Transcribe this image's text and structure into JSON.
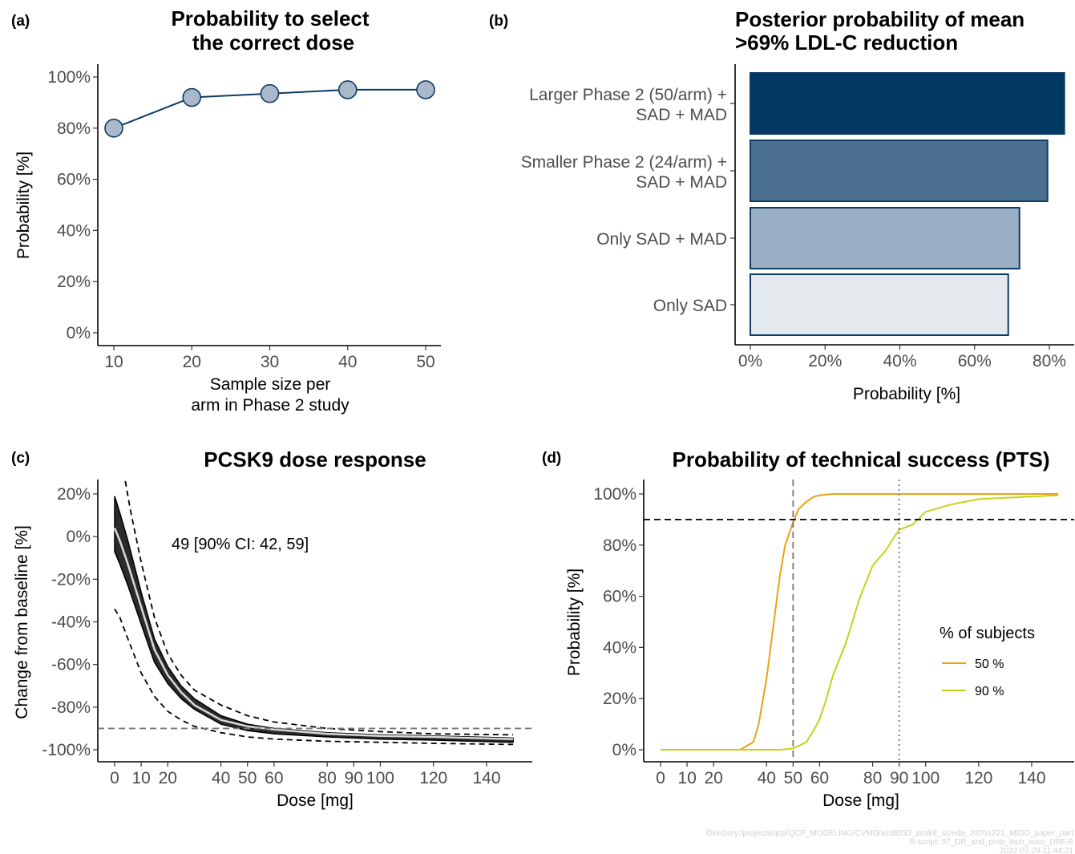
{
  "chart_data": [
    {
      "panel": "(a)",
      "type": "line",
      "title": [
        "Probability to select",
        "the correct dose"
      ],
      "xlabel": [
        "Sample size per",
        "arm in Phase 2 study"
      ],
      "ylabel": "Probability [%]",
      "xlim": [
        10,
        50
      ],
      "ylim": [
        0,
        100
      ],
      "xticks": [
        "10",
        "20",
        "30",
        "40",
        "50"
      ],
      "yticks": [
        "0%",
        "20%",
        "40%",
        "60%",
        "80%",
        "100%"
      ],
      "x": [
        10,
        20,
        30,
        40,
        50
      ],
      "y": [
        80,
        92,
        93.5,
        95,
        95
      ],
      "line_color": "#0b3b66",
      "marker_fill": "#a9b9cb"
    },
    {
      "panel": "(b)",
      "type": "bar",
      "orientation": "horizontal",
      "title": [
        "Posterior probability of mean",
        ">69% LDL-C reduction"
      ],
      "xlabel": "Probability [%]",
      "xlim": [
        0,
        80
      ],
      "xticks": [
        "0%",
        "20%",
        "40%",
        "60%",
        "80%"
      ],
      "categories": [
        [
          "Larger Phase 2 (50/arm) +",
          "SAD + MAD"
        ],
        [
          "Smaller Phase 2 (24/arm) +",
          "SAD + MAD"
        ],
        [
          "Only SAD + MAD"
        ],
        [
          "Only SAD"
        ]
      ],
      "values": [
        84,
        79.5,
        72,
        69
      ],
      "colors": [
        "#003763",
        "#4c7190",
        "#9aafc4",
        "#e4e9ee"
      ],
      "bar_border": "#0b3b66"
    },
    {
      "panel": "(c)",
      "type": "line",
      "title": "PCSK9 dose response",
      "xlabel": "Dose [mg]",
      "ylabel": "Change from baseline [%]",
      "xlim": [
        0,
        150
      ],
      "ylim": [
        -100,
        20
      ],
      "xticks": [
        "0",
        "10",
        "20",
        "40",
        "50",
        "60",
        "80",
        "90",
        "100",
        "120",
        "140"
      ],
      "xtick_values": [
        0,
        10,
        20,
        40,
        50,
        60,
        80,
        90,
        100,
        120,
        140
      ],
      "yticks": [
        "-100%",
        "-80%",
        "-60%",
        "-40%",
        "-20%",
        "0%",
        "20%"
      ],
      "annotation": "49 [90% CI: 42, 59]",
      "reference_line_y": -90,
      "series": [
        {
          "role": "median",
          "x": [
            0,
            2,
            5,
            10,
            15,
            20,
            25,
            30,
            40,
            50,
            60,
            80,
            100,
            120,
            150
          ],
          "y": [
            4,
            -2,
            -13,
            -33,
            -53,
            -65,
            -73,
            -79,
            -86,
            -89,
            -90.5,
            -92.5,
            -93.5,
            -94,
            -95
          ]
        },
        {
          "role": "band-upper",
          "x": [
            0,
            2,
            5,
            10,
            15,
            20,
            25,
            30,
            40,
            50,
            60,
            80,
            100,
            120,
            150
          ],
          "y": [
            19,
            11,
            -2,
            -26,
            -48,
            -61,
            -70,
            -76,
            -84,
            -88,
            -90,
            -92,
            -93,
            -93.5,
            -94.5
          ]
        },
        {
          "role": "band-lower",
          "x": [
            0,
            2,
            5,
            10,
            15,
            20,
            25,
            30,
            40,
            50,
            60,
            80,
            100,
            120,
            150
          ],
          "y": [
            -7,
            -13,
            -23,
            -41,
            -59,
            -69,
            -76,
            -81,
            -88,
            -91,
            -92.5,
            -94,
            -95,
            -95.5,
            -96.5
          ]
        },
        {
          "role": "pi-upper",
          "x": [
            4,
            6,
            10,
            15,
            20,
            25,
            30,
            40,
            50,
            60,
            80,
            100,
            120,
            150
          ],
          "y": [
            26,
            12,
            -12,
            -38,
            -55,
            -65,
            -72,
            -79,
            -84,
            -87,
            -90,
            -91.5,
            -92.5,
            -93
          ]
        },
        {
          "role": "pi-lower",
          "x": [
            0,
            2,
            5,
            10,
            15,
            20,
            25,
            30,
            40,
            50,
            60,
            80,
            100,
            120,
            150
          ],
          "y": [
            -34,
            -38,
            -48,
            -64,
            -75,
            -82,
            -86,
            -89,
            -92,
            -94,
            -95,
            -96,
            -96.5,
            -97,
            -97.5
          ]
        }
      ]
    },
    {
      "panel": "(d)",
      "type": "line",
      "title": "Probability of technical success (PTS)",
      "xlabel": "Dose [mg]",
      "ylabel": "Probability [%]",
      "xlim": [
        0,
        150
      ],
      "ylim": [
        0,
        100
      ],
      "xticks": [
        "0",
        "10",
        "20",
        "40",
        "50",
        "60",
        "80",
        "90",
        "100",
        "120",
        "140"
      ],
      "xtick_values": [
        0,
        10,
        20,
        40,
        50,
        60,
        80,
        90,
        100,
        120,
        140
      ],
      "yticks": [
        "0%",
        "20%",
        "40%",
        "60%",
        "80%",
        "100%"
      ],
      "reference_line_y": 90,
      "vline_dashed_x": 50,
      "vline_dotted_x": 90,
      "legend_title": "% of subjects",
      "series": [
        {
          "name": "50 %",
          "color": "#e8a317",
          "x": [
            0,
            30,
            35,
            37,
            40,
            43,
            45,
            47,
            50,
            52,
            55,
            58,
            60,
            65,
            70,
            150
          ],
          "y": [
            0,
            0,
            3,
            10,
            28,
            52,
            68,
            80,
            89,
            94,
            97,
            99,
            99.5,
            100,
            100,
            100
          ]
        },
        {
          "name": "90 %",
          "color": "#c4d318",
          "x": [
            0,
            45,
            50,
            53,
            55,
            58,
            60,
            62,
            65,
            70,
            75,
            80,
            85,
            88,
            90,
            95,
            100,
            110,
            120,
            150
          ],
          "y": [
            0,
            0,
            0.5,
            2,
            3,
            8,
            12,
            18,
            29,
            42,
            59,
            72,
            78,
            83,
            86,
            88,
            93,
            96,
            98,
            99.5
          ]
        }
      ]
    }
  ],
  "labels": {
    "a": "(a)",
    "b": "(b)",
    "c": "(c)",
    "d": "(d)"
  },
  "footer": [
    "Directory:/projects/qcp/QCP_MODELING/CVMD/azd8233_pcsk9_sc/eda_20201221_MIDD_paper_part",
    "R-script: 07_DR_and_prob_tech_succ_DRF.R",
    "2022-07-29 11:44:21"
  ]
}
